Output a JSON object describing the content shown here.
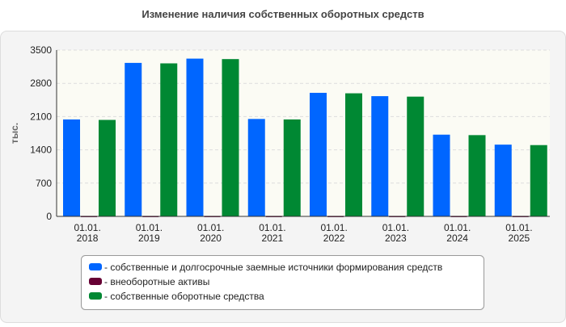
{
  "chart_data": {
    "type": "bar",
    "title": "Изменение наличия собственных оборотных средств",
    "y_label": "тыс.",
    "categories": [
      [
        "01.01.",
        "2018"
      ],
      [
        "01.01.",
        "2019"
      ],
      [
        "01.01.",
        "2020"
      ],
      [
        "01.01.",
        "2021"
      ],
      [
        "01.01.",
        "2022"
      ],
      [
        "01.01.",
        "2023"
      ],
      [
        "01.01.",
        "2024"
      ],
      [
        "01.01.",
        "2025"
      ]
    ],
    "series": [
      {
        "name": "- собственные и долгосрочные заемные источники формирования средств",
        "color": "#0066ff",
        "values": [
          2040,
          3230,
          3320,
          2050,
          2600,
          2530,
          1720,
          1510
        ]
      },
      {
        "name": "- внеоборотные активы",
        "color": "#660033",
        "values": [
          10,
          10,
          10,
          10,
          10,
          10,
          10,
          10
        ]
      },
      {
        "name": "- собственные оборотные средства",
        "color": "#008833",
        "values": [
          2030,
          3220,
          3310,
          2040,
          2590,
          2520,
          1710,
          1500
        ]
      }
    ],
    "ylim": [
      0,
      3500
    ],
    "yticks": [
      0,
      700,
      1400,
      2100,
      2800,
      3500
    ],
    "grid": true
  }
}
